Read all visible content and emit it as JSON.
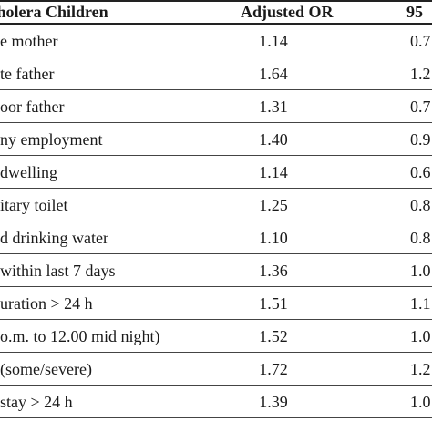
{
  "table": {
    "headers": {
      "factor": "of Cholera Children",
      "adjusted_or": "Adjusted OR",
      "ci": "95"
    },
    "rows": [
      {
        "factor": "e mother",
        "or": "1.14",
        "ci": "0.7"
      },
      {
        "factor": "te father",
        "or": "1.64",
        "ci": "1.2"
      },
      {
        "factor": "oor father",
        "or": "1.31",
        "ci": "0.7"
      },
      {
        "factor": "ny employment",
        "or": "1.40",
        "ci": "0.9"
      },
      {
        "factor": "dwelling",
        "or": "1.14",
        "ci": "0.6"
      },
      {
        "factor": "itary toilet",
        "or": "1.25",
        "ci": "0.8"
      },
      {
        "factor": "d drinking water",
        "or": "1.10",
        "ci": "0.8"
      },
      {
        "factor": "within last 7 days",
        "or": "1.36",
        "ci": "1.0"
      },
      {
        "factor": "uration > 24 h",
        "or": "1.51",
        "ci": "1.1"
      },
      {
        "factor": "o.m. to 12.00 mid night)",
        "or": "1.52",
        "ci": "1.0"
      },
      {
        "factor": "(some/severe)",
        "or": "1.72",
        "ci": "1.2"
      },
      {
        "factor": "stay > 24 h",
        "or": "1.39",
        "ci": "1.0"
      }
    ]
  }
}
